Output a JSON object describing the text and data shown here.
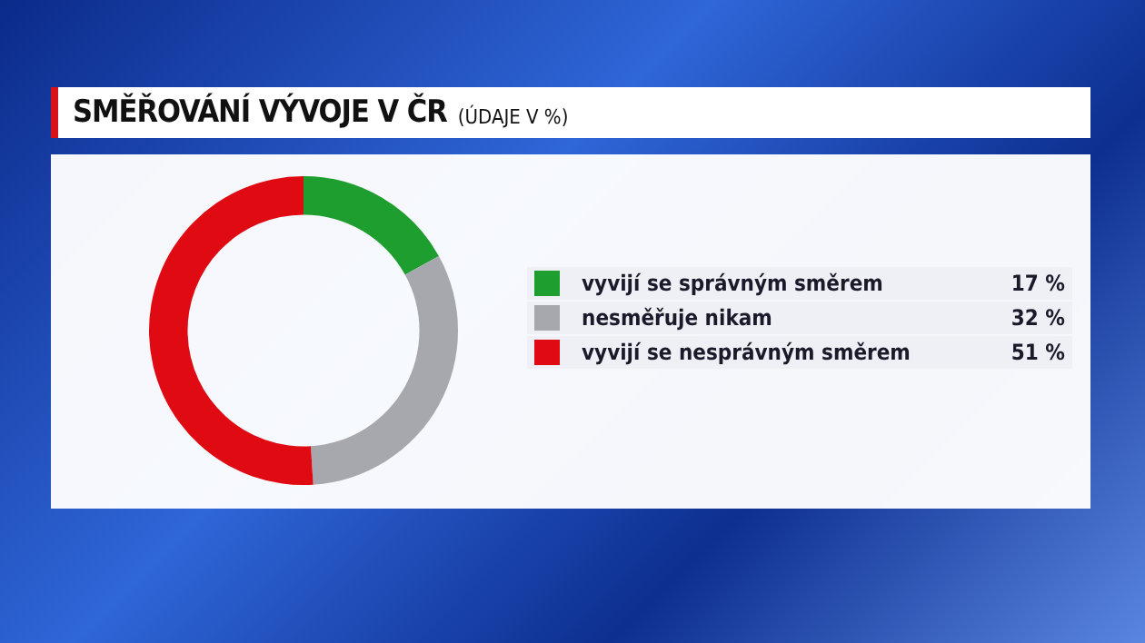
{
  "chart_data": {
    "type": "donut",
    "title": "SMĚŘOVÁNÍ VÝVOJE V ČR",
    "subtitle": "(ÚDAJE V %)",
    "categories": [
      "vyvijí se správným směrem",
      "nesměřuje nikam",
      "vyvijí se nesprávným směrem"
    ],
    "values": [
      17,
      32,
      51
    ],
    "colors": [
      "#1e9e2e",
      "#a6a8ad",
      "#e00a12"
    ],
    "value_labels": [
      "17 %",
      "32 %",
      "51 %"
    ],
    "legend": "right"
  }
}
